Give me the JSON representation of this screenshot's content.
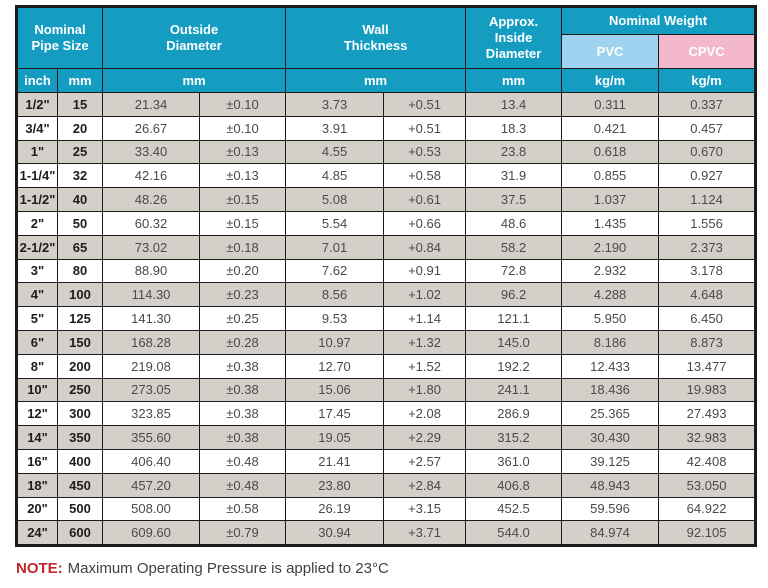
{
  "table": {
    "header": {
      "nominal_pipe_size": "Nominal\nPipe Size",
      "outside_diameter": "Outside\nDiameter",
      "wall_thickness": "Wall\nThickness",
      "approx_inside_diameter": "Approx.\nInside\nDiameter",
      "nominal_weight": "Nominal Weight",
      "pvc": "PVC",
      "cpvc": "CPVC"
    },
    "units": {
      "inch": "inch",
      "mm_pipe": "mm",
      "mm_od": "mm",
      "mm_wall": "mm",
      "mm_id": "mm",
      "kgm_pvc": "kg/m",
      "kgm_cpvc": "kg/m"
    },
    "rows": [
      {
        "inch": "1/2\"",
        "mm": "15",
        "od": "21.34",
        "od_tol": "±0.10",
        "wall": "3.73",
        "wall_tol": "+0.51",
        "id": "13.4",
        "pvc": "0.311",
        "cpvc": "0.337"
      },
      {
        "inch": "3/4\"",
        "mm": "20",
        "od": "26.67",
        "od_tol": "±0.10",
        "wall": "3.91",
        "wall_tol": "+0.51",
        "id": "18.3",
        "pvc": "0.421",
        "cpvc": "0.457"
      },
      {
        "inch": "1\"",
        "mm": "25",
        "od": "33.40",
        "od_tol": "±0.13",
        "wall": "4.55",
        "wall_tol": "+0.53",
        "id": "23.8",
        "pvc": "0.618",
        "cpvc": "0.670"
      },
      {
        "inch": "1-1/4\"",
        "mm": "32",
        "od": "42.16",
        "od_tol": "±0.13",
        "wall": "4.85",
        "wall_tol": "+0.58",
        "id": "31.9",
        "pvc": "0.855",
        "cpvc": "0.927"
      },
      {
        "inch": "1-1/2\"",
        "mm": "40",
        "od": "48.26",
        "od_tol": "±0.15",
        "wall": "5.08",
        "wall_tol": "+0.61",
        "id": "37.5",
        "pvc": "1.037",
        "cpvc": "1.124"
      },
      {
        "inch": "2\"",
        "mm": "50",
        "od": "60.32",
        "od_tol": "±0.15",
        "wall": "5.54",
        "wall_tol": "+0.66",
        "id": "48.6",
        "pvc": "1.435",
        "cpvc": "1.556"
      },
      {
        "inch": "2-1/2\"",
        "mm": "65",
        "od": "73.02",
        "od_tol": "±0.18",
        "wall": "7.01",
        "wall_tol": "+0.84",
        "id": "58.2",
        "pvc": "2.190",
        "cpvc": "2.373"
      },
      {
        "inch": "3\"",
        "mm": "80",
        "od": "88.90",
        "od_tol": "±0.20",
        "wall": "7.62",
        "wall_tol": "+0.91",
        "id": "72.8",
        "pvc": "2.932",
        "cpvc": "3.178"
      },
      {
        "inch": "4\"",
        "mm": "100",
        "od": "114.30",
        "od_tol": "±0.23",
        "wall": "8.56",
        "wall_tol": "+1.02",
        "id": "96.2",
        "pvc": "4.288",
        "cpvc": "4.648"
      },
      {
        "inch": "5\"",
        "mm": "125",
        "od": "141.30",
        "od_tol": "±0.25",
        "wall": "9.53",
        "wall_tol": "+1.14",
        "id": "121.1",
        "pvc": "5.950",
        "cpvc": "6.450"
      },
      {
        "inch": "6\"",
        "mm": "150",
        "od": "168.28",
        "od_tol": "±0.28",
        "wall": "10.97",
        "wall_tol": "+1.32",
        "id": "145.0",
        "pvc": "8.186",
        "cpvc": "8.873"
      },
      {
        "inch": "8\"",
        "mm": "200",
        "od": "219.08",
        "od_tol": "±0.38",
        "wall": "12.70",
        "wall_tol": "+1.52",
        "id": "192.2",
        "pvc": "12.433",
        "cpvc": "13.477"
      },
      {
        "inch": "10\"",
        "mm": "250",
        "od": "273.05",
        "od_tol": "±0.38",
        "wall": "15.06",
        "wall_tol": "+1.80",
        "id": "241.1",
        "pvc": "18.436",
        "cpvc": "19.983"
      },
      {
        "inch": "12\"",
        "mm": "300",
        "od": "323.85",
        "od_tol": "±0.38",
        "wall": "17.45",
        "wall_tol": "+2.08",
        "id": "286.9",
        "pvc": "25.365",
        "cpvc": "27.493"
      },
      {
        "inch": "14\"",
        "mm": "350",
        "od": "355.60",
        "od_tol": "±0.38",
        "wall": "19.05",
        "wall_tol": "+2.29",
        "id": "315.2",
        "pvc": "30.430",
        "cpvc": "32.983"
      },
      {
        "inch": "16\"",
        "mm": "400",
        "od": "406.40",
        "od_tol": "±0.48",
        "wall": "21.41",
        "wall_tol": "+2.57",
        "id": "361.0",
        "pvc": "39.125",
        "cpvc": "42.408"
      },
      {
        "inch": "18\"",
        "mm": "450",
        "od": "457.20",
        "od_tol": "±0.48",
        "wall": "23.80",
        "wall_tol": "+2.84",
        "id": "406.8",
        "pvc": "48.943",
        "cpvc": "53.050"
      },
      {
        "inch": "20\"",
        "mm": "500",
        "od": "508.00",
        "od_tol": "±0.58",
        "wall": "26.19",
        "wall_tol": "+3.15",
        "id": "452.5",
        "pvc": "59.596",
        "cpvc": "64.922"
      },
      {
        "inch": "24\"",
        "mm": "600",
        "od": "609.60",
        "od_tol": "±0.79",
        "wall": "30.94",
        "wall_tol": "+3.71",
        "id": "544.0",
        "pvc": "84.974",
        "cpvc": "92.105"
      }
    ]
  },
  "note": {
    "label": "NOTE:",
    "text": "Maximum Operating Pressure is applied to 23°C"
  },
  "colors": {
    "header_teal": "#149dc1",
    "pvc_blue": "#9fd2ee",
    "cpvc_pink": "#f3b8cb",
    "row_grey": "#d5cfc9",
    "row_white": "#ffffff",
    "border_black": "#1b1b1b",
    "note_red": "#c4252e"
  }
}
